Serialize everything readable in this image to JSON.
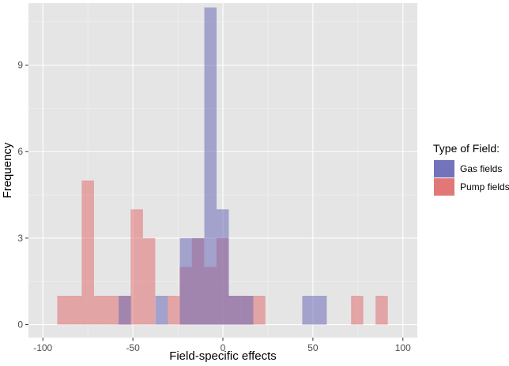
{
  "chart_data": {
    "type": "bar",
    "xlabel": "Field-specific effects",
    "ylabel": "Frequency",
    "xlim": [
      -108,
      108
    ],
    "ylim": [
      -0.45,
      11.15
    ],
    "x_ticks": [
      -100,
      -50,
      0,
      50,
      100
    ],
    "x_tick_labels": [
      "-100",
      "-50",
      "0",
      "50",
      "100"
    ],
    "y_ticks": [
      0,
      3,
      6,
      9
    ],
    "y_tick_labels": [
      "0",
      "3",
      "6",
      "9"
    ],
    "grid": true,
    "bin_width": 6.8,
    "legend": {
      "title": "Type of Field:",
      "position": "right"
    },
    "series": [
      {
        "name": "Gas fields",
        "color": "#6B6BB8",
        "bins": [
          {
            "x0": -57.9,
            "x1": -51.1,
            "count": 1
          },
          {
            "x0": -37.5,
            "x1": -30.7,
            "count": 1
          },
          {
            "x0": -23.9,
            "x1": -17.1,
            "count": 3
          },
          {
            "x0": -17.1,
            "x1": -10.3,
            "count": 3
          },
          {
            "x0": -10.3,
            "x1": -3.5,
            "count": 11
          },
          {
            "x0": -3.5,
            "x1": 3.3,
            "count": 4
          },
          {
            "x0": 3.3,
            "x1": 10.1,
            "count": 1
          },
          {
            "x0": 10.1,
            "x1": 16.9,
            "count": 1
          },
          {
            "x0": 44.1,
            "x1": 50.9,
            "count": 1
          },
          {
            "x0": 50.9,
            "x1": 57.7,
            "count": 1
          }
        ]
      },
      {
        "name": "Pump fields",
        "color": "#E07070",
        "bins": [
          {
            "x0": -92.0,
            "x1": -85.2,
            "count": 1
          },
          {
            "x0": -85.2,
            "x1": -78.4,
            "count": 1
          },
          {
            "x0": -78.4,
            "x1": -71.6,
            "count": 5
          },
          {
            "x0": -71.6,
            "x1": -64.8,
            "count": 1
          },
          {
            "x0": -64.8,
            "x1": -58.0,
            "count": 1
          },
          {
            "x0": -58.0,
            "x1": -51.2,
            "count": 1
          },
          {
            "x0": -51.2,
            "x1": -44.4,
            "count": 4
          },
          {
            "x0": -44.4,
            "x1": -37.6,
            "count": 3
          },
          {
            "x0": -30.8,
            "x1": -24.0,
            "count": 1
          },
          {
            "x0": -24.0,
            "x1": -17.2,
            "count": 2
          },
          {
            "x0": -17.2,
            "x1": -10.4,
            "count": 3
          },
          {
            "x0": -10.4,
            "x1": -3.6,
            "count": 2
          },
          {
            "x0": -3.6,
            "x1": 3.2,
            "count": 3
          },
          {
            "x0": 3.2,
            "x1": 10.0,
            "count": 1
          },
          {
            "x0": 10.0,
            "x1": 16.8,
            "count": 1
          },
          {
            "x0": 16.8,
            "x1": 23.6,
            "count": 1
          },
          {
            "x0": 71.2,
            "x1": 78.0,
            "count": 1
          },
          {
            "x0": 84.8,
            "x1": 91.6,
            "count": 1
          }
        ]
      }
    ]
  }
}
